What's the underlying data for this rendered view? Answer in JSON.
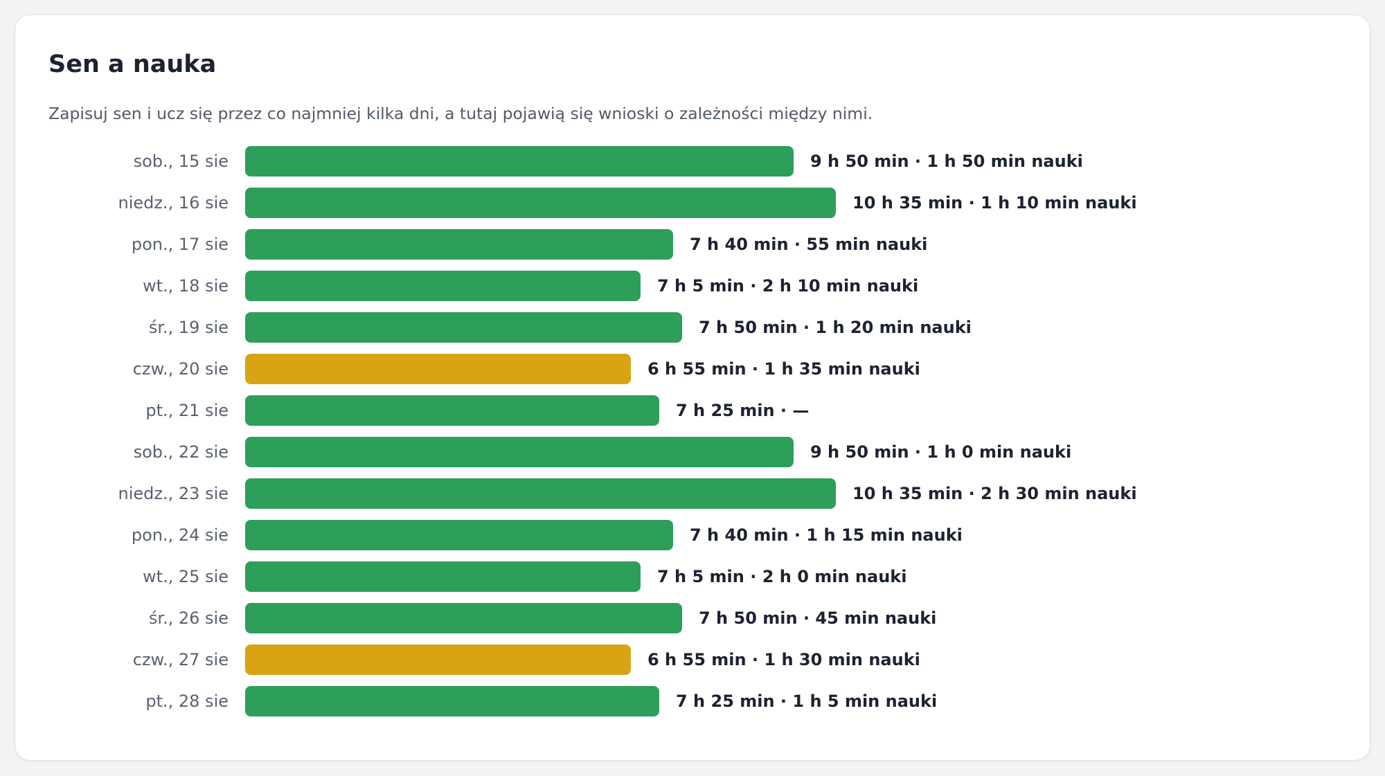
{
  "panel": {
    "title": "Sen a nauka",
    "subtitle": "Zapisuj sen i ucz się przez co najmniej kilka dni, a tutaj pojawią się wnioski o zależności między nimi."
  },
  "colors": {
    "good": "#2e9e5b",
    "warning": "#d9a414"
  },
  "chart_data": {
    "type": "bar",
    "orientation": "horizontal",
    "categories": [
      "sob., 15 sie",
      "niedz., 16 sie",
      "pon., 17 sie",
      "wt., 18 sie",
      "śr., 19 sie",
      "czw., 20 sie",
      "pt., 21 sie",
      "sob., 22 sie",
      "niedz., 23 sie",
      "pon., 24 sie",
      "wt., 25 sie",
      "śr., 26 sie",
      "czw., 27 sie",
      "pt., 28 sie"
    ],
    "sleep_minutes": [
      590,
      635,
      460,
      425,
      470,
      415,
      445,
      590,
      635,
      460,
      425,
      470,
      415,
      445
    ],
    "study_minutes": [
      110,
      70,
      55,
      130,
      80,
      95,
      null,
      60,
      150,
      75,
      120,
      45,
      90,
      65
    ],
    "status": [
      "good",
      "good",
      "good",
      "good",
      "good",
      "warning",
      "good",
      "good",
      "good",
      "good",
      "good",
      "good",
      "warning",
      "good"
    ],
    "labels": [
      "9 h 50 min · 1 h 50 min nauki",
      "10 h 35 min · 1 h 10 min nauki",
      "7 h 40 min · 55 min nauki",
      "7 h 5 min · 2 h 10 min nauki",
      "7 h 50 min · 1 h 20 min nauki",
      "6 h 55 min · 1 h 35 min nauki",
      "7 h 25 min · —",
      "9 h 50 min · 1 h 0 min nauki",
      "10 h 35 min · 2 h 30 min nauki",
      "7 h 40 min · 1 h 15 min nauki",
      "7 h 5 min · 2 h 0 min nauki",
      "7 h 50 min · 45 min nauki",
      "6 h 55 min · 1 h 30 min nauki",
      "7 h 25 min · 1 h 5 min nauki"
    ]
  }
}
